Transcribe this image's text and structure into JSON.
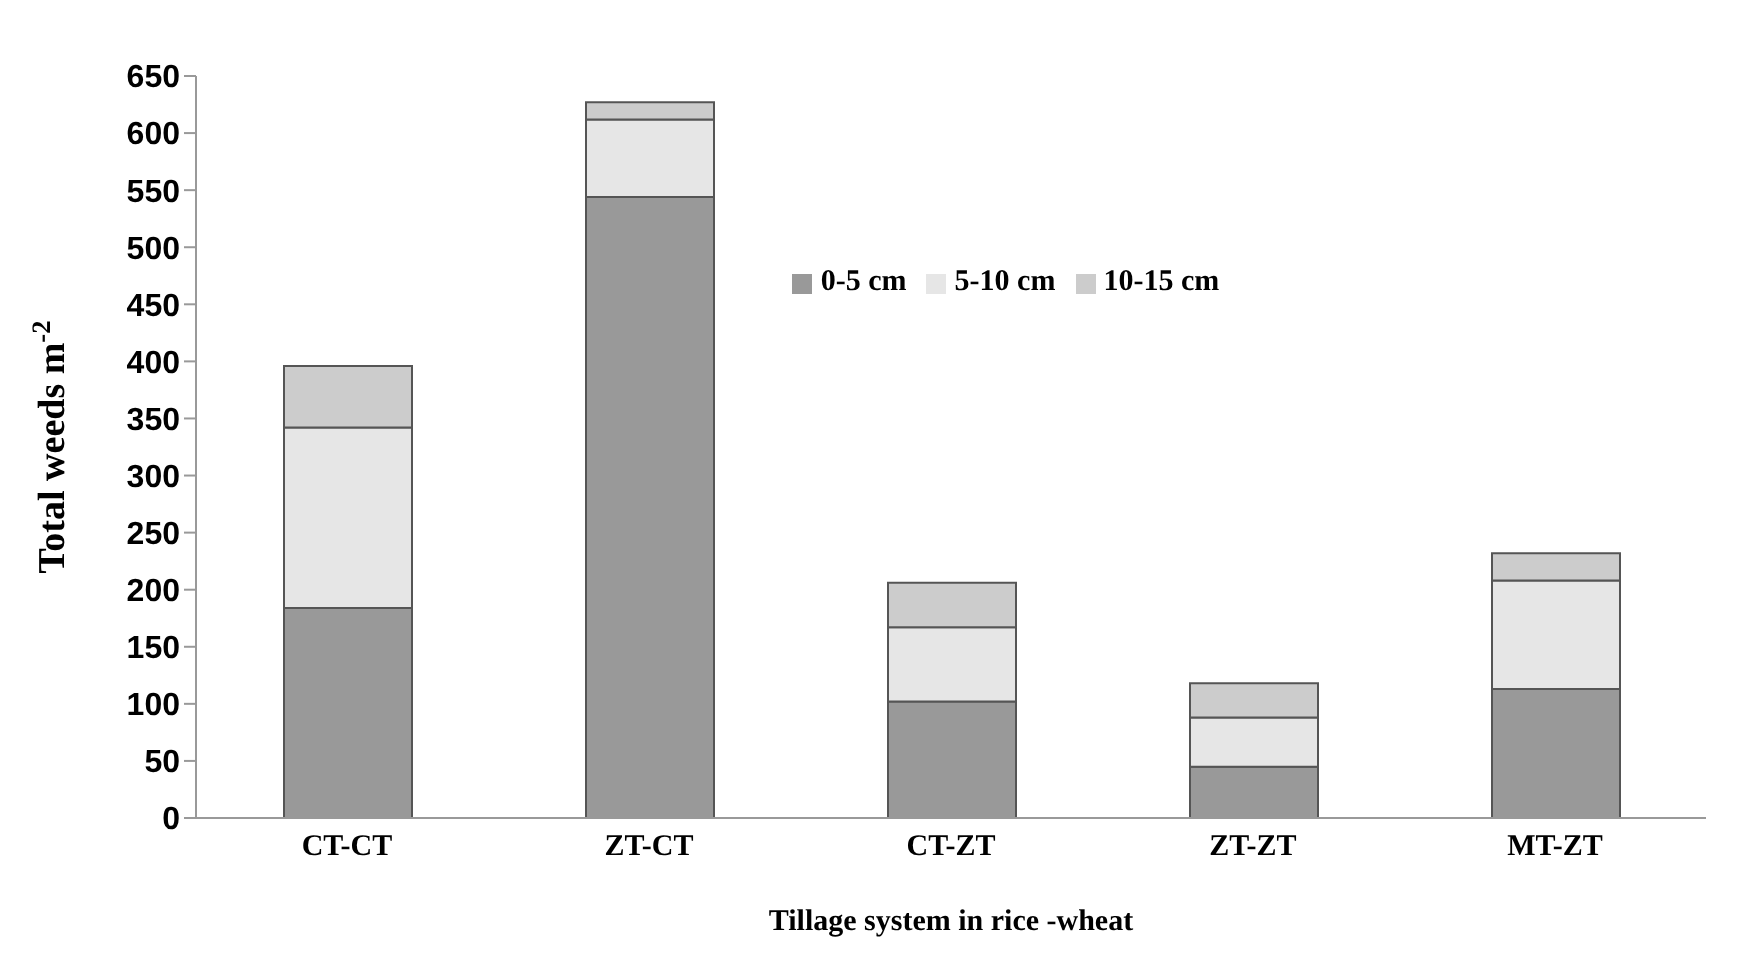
{
  "chart_data": {
    "type": "bar",
    "stacked": true,
    "xlabel": "Tillage system  in rice -wheat",
    "ylabel": "Total weeds m$^{-2}$",
    "categories": [
      "CT-CT",
      "ZT-CT",
      "CT-ZT",
      "ZT-ZT",
      "MT-ZT"
    ],
    "series": [
      {
        "name": "0-5 cm",
        "color": "#999999",
        "values": [
          184,
          544,
          102,
          45,
          113
        ]
      },
      {
        "name": "5-10 cm",
        "color": "#e6e6e6",
        "values": [
          158,
          68,
          65,
          43,
          95
        ]
      },
      {
        "name": "10-15 cm",
        "color": "#cccccc",
        "values": [
          54,
          15,
          39,
          30,
          24
        ]
      }
    ],
    "ylim": [
      0,
      650
    ],
    "yticks": [
      0,
      50,
      100,
      150,
      200,
      250,
      300,
      350,
      400,
      450,
      500,
      550,
      600,
      650
    ],
    "grid": false,
    "legend": "top"
  }
}
